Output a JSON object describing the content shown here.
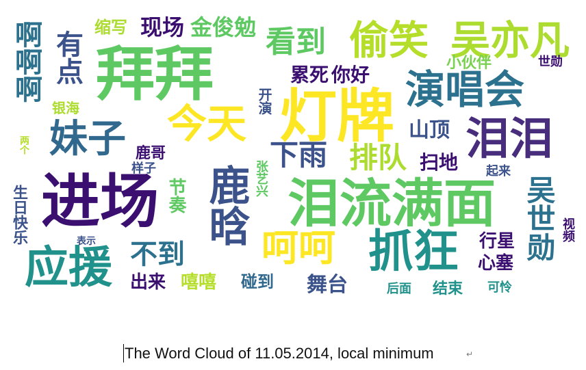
{
  "caption": "The Word Cloud of 11.05.2014, local minimum",
  "paragraph_mark": "↵",
  "words": [
    {
      "text": "拜拜",
      "color": "#5ec962"
    },
    {
      "text": "灯牌",
      "color": "#fde725"
    },
    {
      "text": "进场",
      "color": "#3b0f70"
    },
    {
      "text": "泪流满面",
      "color": "#5ec962"
    },
    {
      "text": "呵呵",
      "color": "#fde725"
    },
    {
      "text": "鹿晗",
      "color": "#3b528b"
    },
    {
      "text": "抓狂",
      "color": "#21918c"
    },
    {
      "text": "应援",
      "color": "#21918c"
    },
    {
      "text": "偷笑",
      "color": "#b5de2b"
    },
    {
      "text": "吴亦凡",
      "color": "#addc30"
    },
    {
      "text": "演唱会",
      "color": "#2c728e"
    },
    {
      "text": "泪泪",
      "color": "#472d7b"
    },
    {
      "text": "今天",
      "color": "#fde725"
    },
    {
      "text": "妹子",
      "color": "#31688e"
    },
    {
      "text": "看到",
      "color": "#5ec962"
    },
    {
      "text": "啊啊啊",
      "color": "#2c728e"
    },
    {
      "text": "有点",
      "color": "#3b528b"
    },
    {
      "text": "缩写",
      "color": "#addc30"
    },
    {
      "text": "现场",
      "color": "#3b0f70"
    },
    {
      "text": "金俊勉",
      "color": "#5ec962"
    },
    {
      "text": "累死",
      "color": "#3b0f70"
    },
    {
      "text": "你好",
      "color": "#3b0f70"
    },
    {
      "text": "小伙伴",
      "color": "#7ad151"
    },
    {
      "text": "世勋",
      "color": "#3b0f70"
    },
    {
      "text": "银海",
      "color": "#addc30"
    },
    {
      "text": "开演",
      "color": "#3b528b"
    },
    {
      "text": "山顶",
      "color": "#3b528b"
    },
    {
      "text": "下雨",
      "color": "#3b528b"
    },
    {
      "text": "排队",
      "color": "#addc30"
    },
    {
      "text": "鹿哥",
      "color": "#3b0f70"
    },
    {
      "text": "扫地",
      "color": "#3b0f70"
    },
    {
      "text": "两个",
      "color": "#b5de2b"
    },
    {
      "text": "生日快乐",
      "color": "#3b528b"
    },
    {
      "text": "样子",
      "color": "#3b528b"
    },
    {
      "text": "节奏",
      "color": "#5ec962"
    },
    {
      "text": "张艺兴",
      "color": "#5ec962"
    },
    {
      "text": "起来",
      "color": "#3b528b"
    },
    {
      "text": "吴世勋",
      "color": "#2c728e"
    },
    {
      "text": "视频",
      "color": "#3b0f70"
    },
    {
      "text": "表示",
      "color": "#3b528b"
    },
    {
      "text": "不到",
      "color": "#2c728e"
    },
    {
      "text": "行星",
      "color": "#3b0f70"
    },
    {
      "text": "心塞",
      "color": "#3b0f70"
    },
    {
      "text": "出来",
      "color": "#3b0f70"
    },
    {
      "text": "嘻嘻",
      "color": "#b5de2b"
    },
    {
      "text": "碰到",
      "color": "#31688e"
    },
    {
      "text": "舞台",
      "color": "#3b528b"
    },
    {
      "text": "后面",
      "color": "#21918c"
    },
    {
      "text": "结束",
      "color": "#21918c"
    },
    {
      "text": "可怜",
      "color": "#21918c"
    }
  ]
}
